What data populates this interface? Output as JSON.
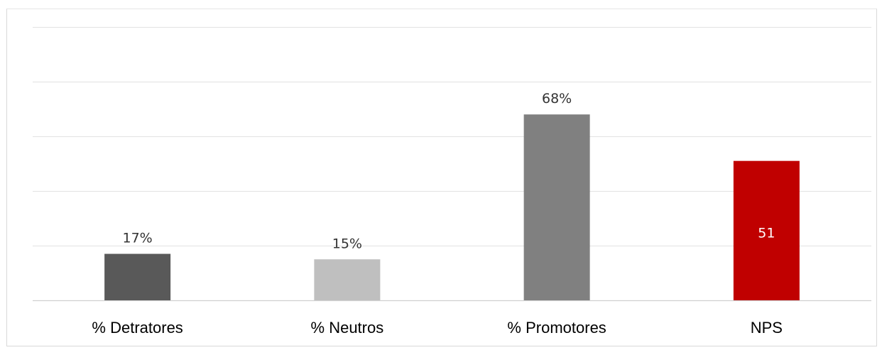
{
  "chart_data": {
    "type": "bar",
    "title": "",
    "xlabel": "",
    "ylabel": "",
    "categories": [
      "% Detratores",
      "% Neutros",
      "% Promotores",
      "NPS"
    ],
    "values": [
      17,
      15,
      68,
      51
    ],
    "data_labels": [
      "17%",
      "15%",
      "68%",
      "51"
    ],
    "label_positions": [
      "outside",
      "outside",
      "outside",
      "inside"
    ],
    "colors": [
      "#595959",
      "#bfbfbf",
      "#808080",
      "#c00000"
    ],
    "ylim": [
      0,
      100
    ],
    "y_gridline_step": 20,
    "grid": true,
    "legend": "none"
  }
}
